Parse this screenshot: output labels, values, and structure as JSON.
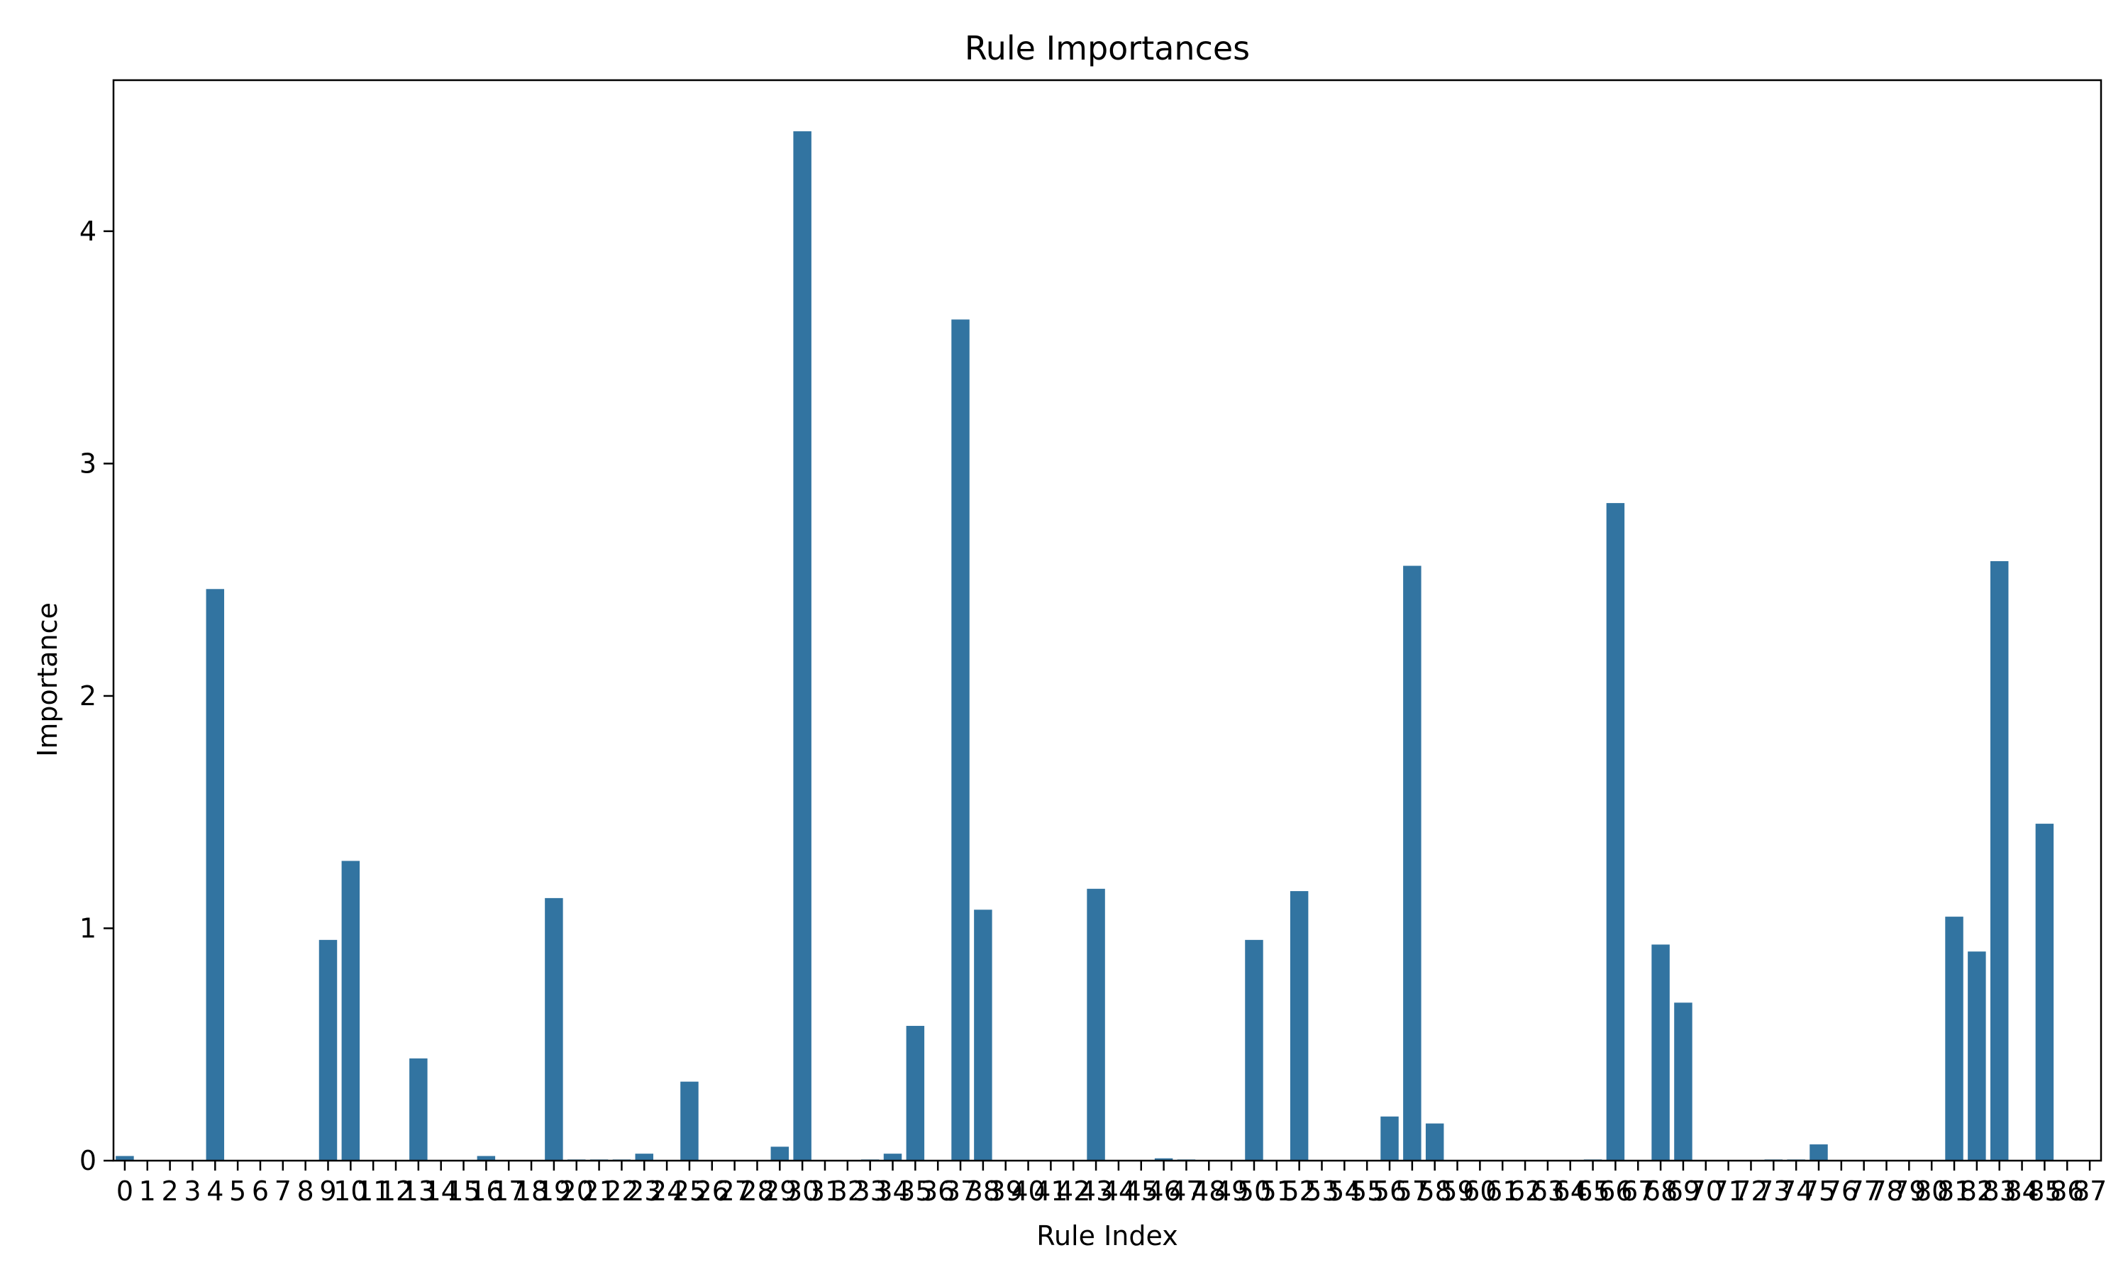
{
  "chart_data": {
    "type": "bar",
    "title": "Rule Importances",
    "xlabel": "Rule Index",
    "ylabel": "Importance",
    "ylim": [
      0,
      4.65
    ],
    "yticks": [
      0,
      1,
      2,
      3,
      4
    ],
    "grid": false,
    "bar_color": "#3274a1",
    "categories": [
      "0",
      "1",
      "2",
      "3",
      "4",
      "5",
      "6",
      "7",
      "8",
      "9",
      "10",
      "11",
      "12",
      "13",
      "14",
      "15",
      "16",
      "17",
      "18",
      "19",
      "20",
      "21",
      "22",
      "23",
      "24",
      "25",
      "26",
      "27",
      "28",
      "29",
      "30",
      "31",
      "32",
      "33",
      "34",
      "35",
      "36",
      "37",
      "38",
      "39",
      "40",
      "41",
      "42",
      "43",
      "44",
      "45",
      "46",
      "47",
      "48",
      "49",
      "50",
      "51",
      "52",
      "53",
      "54",
      "55",
      "56",
      "57",
      "58",
      "59",
      "60",
      "61",
      "62",
      "63",
      "64",
      "65",
      "66",
      "67",
      "68",
      "69",
      "70",
      "71",
      "72",
      "73",
      "74",
      "75",
      "76",
      "77",
      "78",
      "79",
      "80",
      "81",
      "82",
      "83",
      "84",
      "85",
      "86",
      "87"
    ],
    "values": [
      0.02,
      0,
      0,
      0,
      2.46,
      0,
      0,
      0,
      0,
      0.95,
      1.29,
      0,
      0,
      0.44,
      0,
      0,
      0.02,
      0,
      0,
      1.13,
      0.005,
      0.005,
      0.005,
      0.03,
      0,
      0.34,
      0,
      0,
      0,
      0.06,
      4.43,
      0,
      0,
      0.005,
      0.03,
      0.58,
      0,
      3.62,
      1.08,
      0,
      0,
      0,
      0,
      1.17,
      0,
      0,
      0.01,
      0.005,
      0,
      0,
      0.95,
      0,
      1.16,
      0,
      0,
      0,
      0.19,
      2.56,
      0.16,
      0,
      0,
      0,
      0,
      0,
      0,
      0.005,
      2.83,
      0,
      0.93,
      0.68,
      0,
      0,
      0,
      0.005,
      0.005,
      0.07,
      0,
      0,
      0,
      0,
      0,
      1.05,
      0.9,
      2.58,
      0,
      1.45,
      0,
      0
    ]
  }
}
